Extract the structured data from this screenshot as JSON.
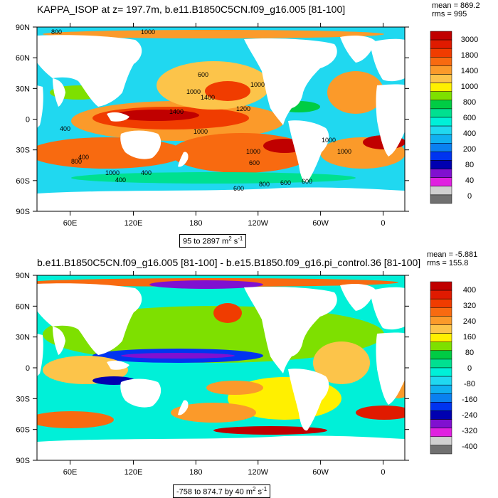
{
  "top_panel": {
    "title": "KAPPA_ISOP at z= 197.7m, b.e11.B1850C5CN.f09_g16.005 [81-100]",
    "mean_label": "mean = 869.2",
    "rms_label": "rms = 995",
    "range_base": "95 to 2897 m",
    "range_exp": "2",
    "range_unit": "s",
    "range_unit_exp": "-1",
    "contour_labels": [
      "800",
      "1000",
      "600",
      "1000",
      "1400",
      "1000",
      "1400",
      "1000",
      "1200",
      "400",
      "1000",
      "1000",
      "600",
      "1000",
      "400",
      "1000",
      "800",
      "600",
      "600",
      "400",
      "800",
      "600",
      "400"
    ],
    "colorbar": {
      "labels": [
        "3000",
        "1800",
        "1400",
        "1000",
        "800",
        "600",
        "400",
        "200",
        "80",
        "40",
        "0"
      ],
      "colors": [
        "#c00000",
        "#e01a00",
        "#f03c00",
        "#f86a10",
        "#fb9a2a",
        "#fcc44a",
        "#fff000",
        "#7ee000",
        "#00cc44",
        "#00e090",
        "#00f0d8",
        "#20d8f0",
        "#10b0f0",
        "#0a80f0",
        "#0034f0",
        "#0000b0",
        "#8010d0",
        "#e020e0",
        "#d0d0d0",
        "#707070"
      ]
    }
  },
  "bottom_panel": {
    "title": "b.e11.B1850C5CN.f09_g16.005 [81-100] - b.e15.B1850.f09_g16.pi_control.36 [81-100]",
    "mean_label": "mean = -5.881",
    "rms_label": "rms = 155.8",
    "range_base": "-758 to 874.7 by 40 m",
    "range_exp": "2",
    "range_unit": "s",
    "range_unit_exp": "-1",
    "colorbar": {
      "labels": [
        "400",
        "320",
        "240",
        "160",
        "80",
        "0",
        "-80",
        "-160",
        "-240",
        "-320",
        "-400"
      ],
      "colors": [
        "#c00000",
        "#e01a00",
        "#f03c00",
        "#f86a10",
        "#fb9a2a",
        "#fcc44a",
        "#fff000",
        "#7ee000",
        "#00cc44",
        "#00e090",
        "#00f0d8",
        "#20d8f0",
        "#10b0f0",
        "#0a80f0",
        "#0034f0",
        "#0000b0",
        "#8010d0",
        "#e020e0",
        "#d0d0d0",
        "#707070"
      ]
    }
  },
  "axes": {
    "lat_labels": [
      "90N",
      "60N",
      "30N",
      "0",
      "30S",
      "60S",
      "90S"
    ],
    "lon_labels": [
      "60E",
      "120E",
      "180",
      "120W",
      "60W",
      "0"
    ]
  }
}
